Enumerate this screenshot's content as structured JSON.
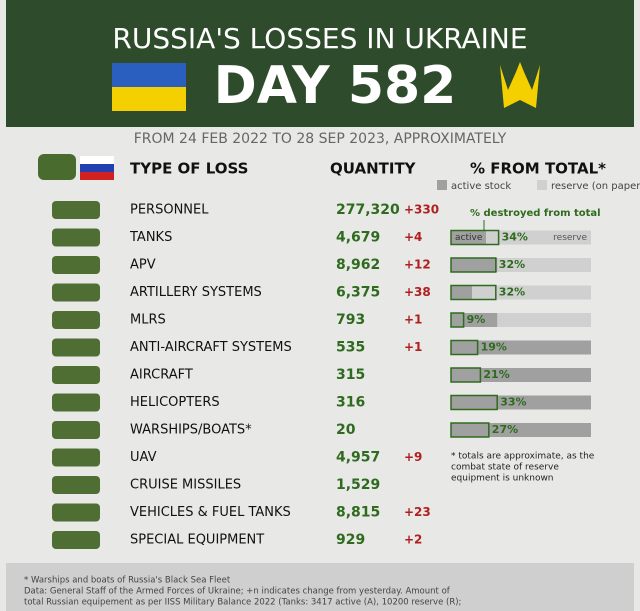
{
  "header": {
    "title": "RUSSIA'S LOSSES IN UKRAINE",
    "day": "DAY 582"
  },
  "subtitle": "FROM 24 FEB 2022 TO 28 SEP 2023, APPROXIMATELY",
  "columns": {
    "type": "TYPE OF LOSS",
    "quantity": "QUANTITY",
    "percent": "% FROM TOTAL*"
  },
  "legend": {
    "active": "active stock",
    "reserve": "reserve (on paper)"
  },
  "bar_note": "% destroyed from total",
  "bar_labels": {
    "active": "active",
    "reserve": "reserve"
  },
  "rows": [
    {
      "name": "PERSONNEL",
      "quantity": "277,320",
      "change": "+330"
    },
    {
      "name": "TANKS",
      "quantity": "4,679",
      "change": "+4",
      "percent": 34,
      "percent_label": "34%",
      "active_share": 25
    },
    {
      "name": "APV",
      "quantity": "8,962",
      "change": "+12",
      "percent": 32,
      "percent_label": "32%",
      "active_share": 33
    },
    {
      "name": "ARTILLERY SYSTEMS",
      "quantity": "6,375",
      "change": "+38",
      "percent": 32,
      "percent_label": "32%",
      "active_share": 15
    },
    {
      "name": "MLRS",
      "quantity": "793",
      "change": "+1",
      "percent": 9,
      "percent_label": "9%",
      "active_share": 33
    },
    {
      "name": "ANTI-AIRCRAFT SYSTEMS",
      "quantity": "535",
      "change": "+1",
      "percent": 19,
      "percent_label": "19%",
      "active_share": 100
    },
    {
      "name": "AIRCRAFT",
      "quantity": "315",
      "percent": 21,
      "percent_label": "21%",
      "active_share": 100
    },
    {
      "name": "HELICOPTERS",
      "quantity": "316",
      "percent": 33,
      "percent_label": "33%",
      "active_share": 100
    },
    {
      "name": "WARSHIPS/BOATS*",
      "quantity": "20",
      "percent": 27,
      "percent_label": "27%",
      "active_share": 100
    },
    {
      "name": "UAV",
      "quantity": "4,957",
      "change": "+9"
    },
    {
      "name": "CRUISE MISSILES",
      "quantity": "1,529"
    },
    {
      "name": "VEHICLES & FUEL TANKS",
      "quantity": "8,815",
      "change": "+23"
    },
    {
      "name": "SPECIAL EQUIPMENT",
      "quantity": "929",
      "change": "+2"
    }
  ],
  "side_note": [
    "* totals are approximate, as the",
    "combat state of reserve",
    "equipment is unknown"
  ],
  "footer": [
    "* Warships and boats of Russia's Black Sea Fleet",
    "Data: General Staff of the Armed Forces of Ukraine; +n indicates change from yesterday. Amount of",
    "total Russian equipement as per IISS Military Balance 2022 (Tanks: 3417 active (A), 10200 reserve (R);"
  ]
}
